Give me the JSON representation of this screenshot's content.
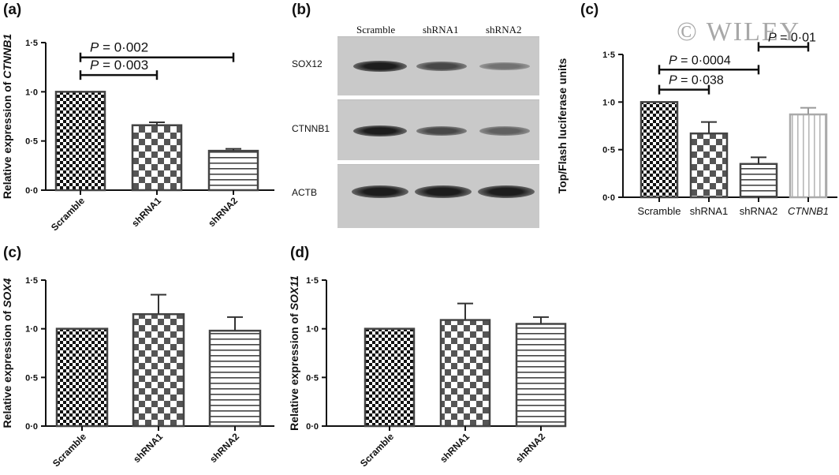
{
  "watermark": "© WILEY",
  "blot": {
    "label": "(b)",
    "lanes": [
      "Scramble",
      "shRNA1",
      "shRNA2"
    ],
    "rows": [
      {
        "name": "SOX12",
        "intensity": [
          0.95,
          0.7,
          0.45
        ]
      },
      {
        "name": "CTNNB1",
        "intensity": [
          0.95,
          0.7,
          0.55
        ]
      },
      {
        "name": "ACTB",
        "intensity": [
          0.95,
          0.95,
          0.95
        ]
      }
    ]
  },
  "colors": {
    "bar_edge": "#444444",
    "light_bar_edge": "#aaaaaa"
  },
  "chart_data": [
    {
      "id": "a",
      "label": "(a)",
      "type": "bar",
      "categories": [
        "Scramble",
        "shRNA1",
        "shRNA2"
      ],
      "values": [
        1.0,
        0.66,
        0.4
      ],
      "errors": [
        0,
        0.03,
        0.02
      ],
      "patterns": [
        "checker-fine",
        "checker",
        "hlines"
      ],
      "ylabel_pre": "Relative expression of ",
      "ylabel_gene": "CTNNB1",
      "ylim": [
        0,
        1.5
      ],
      "yticks": [
        "0·0",
        "0·5",
        "1·0",
        "1·5"
      ],
      "xlabel_rotated": true,
      "annotations": [
        {
          "italic": "P",
          "rest": " = 0·003",
          "from": 0,
          "to": 1,
          "y": 1.17
        },
        {
          "italic": "P",
          "rest": " = 0·002",
          "from": 0,
          "to": 2,
          "y": 1.35
        }
      ]
    },
    {
      "id": "c1",
      "label": "(c)",
      "type": "bar",
      "categories": [
        "Scramble",
        "shRNA1",
        "shRNA2",
        "CTNNB1"
      ],
      "italic_categories": [
        false,
        false,
        false,
        true
      ],
      "values": [
        1.0,
        0.67,
        0.35,
        0.87
      ],
      "errors": [
        0,
        0.12,
        0.07,
        0.07
      ],
      "patterns": [
        "checker-fine",
        "checker",
        "hlines",
        "vlines-light"
      ],
      "ylabel_pre": "Top/Flash luciferase units",
      "ylabel_gene": "",
      "ylim": [
        0,
        1.5
      ],
      "yticks": [
        "0·0",
        "0·5",
        "1·0",
        "1·5"
      ],
      "xlabel_rotated": false,
      "annotations": [
        {
          "italic": "P",
          "rest": " = 0·038",
          "from": 0,
          "to": 1,
          "y": 1.13
        },
        {
          "italic": "P",
          "rest": " = 0·0004",
          "from": 0,
          "to": 2,
          "y": 1.34
        },
        {
          "italic": "P",
          "rest": " = 0·01",
          "from": 2,
          "to": 3,
          "y": 1.58
        }
      ]
    },
    {
      "id": "c2",
      "label": "(c)",
      "type": "bar",
      "categories": [
        "Scramble",
        "shRNA1",
        "shRNA2"
      ],
      "values": [
        1.0,
        1.15,
        0.98
      ],
      "errors": [
        0,
        0.2,
        0.14
      ],
      "patterns": [
        "checker-fine",
        "checker",
        "hlines"
      ],
      "ylabel_pre": "Relative expression of ",
      "ylabel_gene": "SOX4",
      "ylim": [
        0,
        1.5
      ],
      "yticks": [
        "0·0",
        "0·5",
        "1·0",
        "1·5"
      ],
      "xlabel_rotated": true,
      "annotations": []
    },
    {
      "id": "d",
      "label": "(d)",
      "type": "bar",
      "categories": [
        "Scramble",
        "shRNA1",
        "shRNA2"
      ],
      "values": [
        1.0,
        1.09,
        1.05
      ],
      "errors": [
        0,
        0.17,
        0.07
      ],
      "patterns": [
        "checker-fine",
        "checker",
        "hlines"
      ],
      "ylabel_pre": "Relative expression of ",
      "ylabel_gene": "SOX11",
      "ylim": [
        0,
        1.5
      ],
      "yticks": [
        "0·0",
        "0·5",
        "1·0",
        "1·5"
      ],
      "xlabel_rotated": true,
      "annotations": []
    }
  ]
}
